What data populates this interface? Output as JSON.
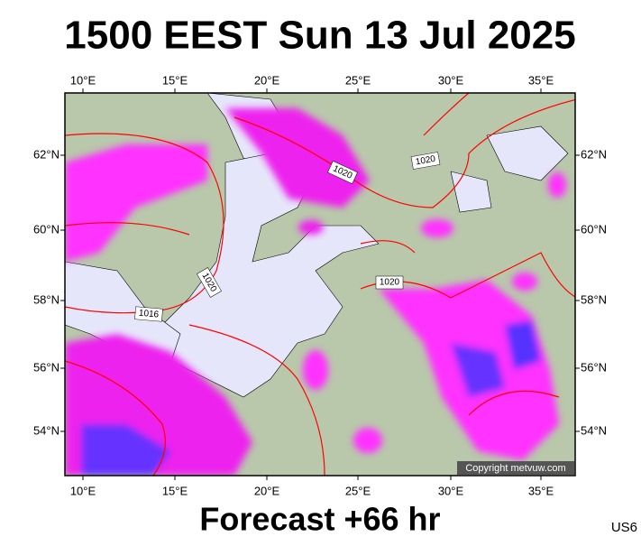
{
  "header": {
    "title": "1500 EEST Sun 13 Jul 2025"
  },
  "map": {
    "lon_labels": [
      "10°E",
      "15°E",
      "20°E",
      "25°E",
      "30°E",
      "35°E"
    ],
    "lat_labels": [
      "62°N",
      "60°N",
      "58°N",
      "56°N",
      "54°N"
    ],
    "isobar_labels": [
      "1020",
      "1020",
      "1020",
      "1020",
      "1016"
    ],
    "copyright": "Copyright metvuw.com"
  },
  "footer": {
    "forecast": "Forecast +66 hr",
    "code": "US6"
  }
}
